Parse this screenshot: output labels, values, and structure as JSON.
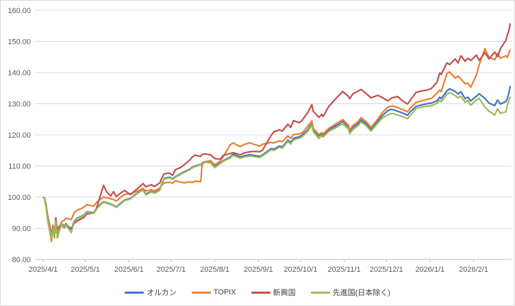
{
  "chart_data": {
    "type": "line",
    "title": "",
    "description": "Indexed performance comparison (start = 100 at 2025/4/1) of four funds/indices",
    "grid": true,
    "colors": {
      "grid": "#d9d9d9",
      "axis": "#bfbfbf",
      "tick_text": "#595959"
    },
    "y_axis": {
      "min": 80,
      "max": 160,
      "step": 10,
      "tick_labels": [
        "80.00",
        "90.00",
        "100.00",
        "110.00",
        "120.00",
        "130.00",
        "140.00",
        "150.00",
        "160.00"
      ]
    },
    "x_axis": {
      "tick_labels": [
        "2025/4/1",
        "2025/5/1",
        "2025/6/1",
        "2025/7/1",
        "2025/8/1",
        "2025/9/1",
        "2025/10/1",
        "2025/11/1",
        "2025/12/1",
        "2026/1/1",
        "2026/2/1"
      ]
    },
    "legend": {
      "position": "bottom",
      "items": [
        "オルカン",
        "TOPIX",
        "新興国",
        "先進国(日本除く)"
      ]
    },
    "dates": [
      "2025/4/1",
      "2025/4/2",
      "2025/4/3",
      "2025/4/4",
      "2025/4/7",
      "2025/4/8",
      "2025/4/9",
      "2025/4/10",
      "2025/4/11",
      "2025/4/14",
      "2025/4/16",
      "2025/4/17",
      "2025/4/21",
      "2025/4/23",
      "2025/4/25",
      "2025/4/28",
      "2025/4/30",
      "2025/5/2",
      "2025/5/7",
      "2025/5/9",
      "2025/5/12",
      "2025/5/14",
      "2025/5/16",
      "2025/5/19",
      "2025/5/21",
      "2025/5/23",
      "2025/5/27",
      "2025/5/29",
      "2025/6/2",
      "2025/6/4",
      "2025/6/9",
      "2025/6/11",
      "2025/6/13",
      "2025/6/17",
      "2025/6/19",
      "2025/6/23",
      "2025/6/24",
      "2025/6/26",
      "2025/6/30",
      "2025/7/2",
      "2025/7/4",
      "2025/7/8",
      "2025/7/10",
      "2025/7/14",
      "2025/7/16",
      "2025/7/18",
      "2025/7/22",
      "2025/7/23",
      "2025/7/25",
      "2025/7/29",
      "2025/8/1",
      "2025/8/5",
      "2025/8/7",
      "2025/8/12",
      "2025/8/14",
      "2025/8/19",
      "2025/8/22",
      "2025/8/26",
      "2025/8/29",
      "2025/9/2",
      "2025/9/4",
      "2025/9/10",
      "2025/9/12",
      "2025/9/16",
      "2025/9/18",
      "2025/9/22",
      "2025/9/24",
      "2025/9/26",
      "2025/9/30",
      "2025/10/2",
      "2025/10/6",
      "2025/10/9",
      "2025/10/10",
      "2025/10/14",
      "2025/10/16",
      "2025/10/17",
      "2025/10/21",
      "2025/10/24",
      "2025/10/28",
      "2025/10/31",
      "2025/11/4",
      "2025/11/5",
      "2025/11/7",
      "2025/11/11",
      "2025/11/13",
      "2025/11/17",
      "2025/11/20",
      "2025/11/25",
      "2025/11/28",
      "2025/12/2",
      "2025/12/5",
      "2025/12/9",
      "2025/12/12",
      "2025/12/16",
      "2025/12/18",
      "2025/12/22",
      "2025/12/26",
      "2025/12/30",
      "2026/1/2",
      "2026/1/6",
      "2026/1/8",
      "2026/1/9",
      "2026/1/13",
      "2026/1/15",
      "2026/1/19",
      "2026/1/21",
      "2026/1/23",
      "2026/1/26",
      "2026/1/28",
      "2026/1/30",
      "2026/2/3",
      "2026/2/5",
      "2026/2/9",
      "2026/2/12",
      "2026/2/16",
      "2026/2/18",
      "2026/2/20",
      "2026/2/24",
      "2026/2/25",
      "2026/2/26",
      "2026/2/27"
    ],
    "series": [
      {
        "name": "オルカン",
        "slug": "all-country-orkan",
        "color": "#4472C4",
        "values": [
          100,
          99.6,
          97.2,
          93.8,
          87.2,
          90.3,
          88.0,
          92.5,
          89.5,
          91.5,
          90.8,
          91.5,
          89.6,
          92.3,
          93.2,
          93.8,
          94.3,
          95.3,
          95.0,
          96.3,
          97.9,
          98.5,
          98.3,
          97.8,
          97.4,
          96.9,
          98.4,
          99.1,
          99.6,
          100.4,
          102.0,
          102.4,
          101.0,
          101.9,
          101.4,
          102.4,
          104.0,
          106.0,
          106.4,
          105.9,
          106.6,
          107.6,
          108.1,
          108.9,
          109.6,
          110.0,
          110.5,
          111.0,
          111.4,
          111.2,
          109.8,
          111.0,
          111.7,
          112.9,
          113.8,
          112.9,
          113.3,
          113.6,
          113.4,
          113.1,
          113.6,
          115.6,
          115.4,
          116.4,
          116.1,
          118.3,
          117.6,
          118.9,
          119.4,
          119.9,
          121.6,
          123.6,
          121.6,
          119.6,
          120.4,
          119.9,
          121.6,
          122.4,
          123.4,
          124.3,
          122.6,
          121.1,
          122.3,
          123.6,
          124.8,
          123.4,
          121.9,
          124.4,
          126.1,
          127.8,
          128.2,
          127.6,
          127.1,
          126.3,
          127.4,
          129.1,
          129.6,
          130.0,
          130.2,
          130.9,
          132.1,
          131.6,
          134.1,
          134.8,
          133.9,
          133.1,
          133.9,
          131.6,
          132.1,
          130.9,
          132.4,
          133.2,
          131.7,
          130.2,
          129.4,
          131.2,
          129.9,
          130.7,
          131.7,
          133.3,
          135.5
        ]
      },
      {
        "name": "TOPIX",
        "slug": "topix",
        "color": "#ED7D31",
        "values": [
          100,
          99.5,
          96.8,
          93.2,
          85.8,
          91.0,
          87.0,
          91.5,
          88.2,
          92.0,
          92.6,
          93.2,
          92.8,
          95.0,
          95.8,
          96.3,
          96.8,
          97.6,
          97.1,
          98.3,
          99.4,
          100.1,
          99.8,
          99.5,
          99.2,
          98.8,
          100.3,
          100.9,
          101.1,
          101.4,
          102.3,
          102.8,
          102.0,
          102.4,
          102.0,
          102.9,
          103.6,
          104.6,
          104.8,
          104.5,
          105.3,
          104.8,
          104.6,
          104.9,
          104.7,
          105.1,
          105.0,
          110.3,
          111.4,
          111.7,
          110.4,
          111.6,
          113.0,
          116.8,
          117.4,
          116.2,
          116.9,
          117.5,
          116.9,
          116.4,
          117.0,
          117.6,
          117.4,
          118.1,
          117.8,
          119.6,
          118.9,
          120.1,
          120.3,
          120.6,
          122.7,
          124.5,
          122.1,
          120.1,
          120.7,
          120.3,
          122.1,
          122.9,
          124.1,
          124.9,
          123.1,
          121.6,
          122.9,
          124.3,
          125.5,
          124.1,
          122.4,
          125.1,
          127.1,
          128.9,
          129.3,
          128.8,
          128.2,
          127.4,
          128.6,
          130.4,
          130.9,
          131.4,
          131.7,
          133.4,
          134.4,
          133.9,
          139.7,
          140.2,
          138.2,
          138.9,
          137.9,
          136.4,
          136.6,
          135.3,
          139.2,
          142.6,
          147.7,
          144.9,
          144.1,
          146.1,
          144.6,
          145.4,
          144.8,
          146.2,
          147.2
        ]
      },
      {
        "name": "新興国",
        "slug": "emerging-markets",
        "color": "#C0504D",
        "values": [
          100,
          99.7,
          97.8,
          94.5,
          88.0,
          90.5,
          87.3,
          93.4,
          90.0,
          91.0,
          90.2,
          90.8,
          90.0,
          91.5,
          92.3,
          93.0,
          93.5,
          94.6,
          94.9,
          96.5,
          101.0,
          103.8,
          101.8,
          100.4,
          101.8,
          100.2,
          101.6,
          102.1,
          100.8,
          101.6,
          103.5,
          104.4,
          103.3,
          104.0,
          103.4,
          104.6,
          105.8,
          107.5,
          107.7,
          107.0,
          108.8,
          109.6,
          110.3,
          111.8,
          112.9,
          113.5,
          113.1,
          113.7,
          113.9,
          113.6,
          112.4,
          112.2,
          113.4,
          114.0,
          114.3,
          113.6,
          114.2,
          114.6,
          114.7,
          114.6,
          115.1,
          119.8,
          121.0,
          121.6,
          121.2,
          123.4,
          122.4,
          124.6,
          123.9,
          124.6,
          127.1,
          129.7,
          127.6,
          125.6,
          126.6,
          125.9,
          129.1,
          130.6,
          132.6,
          133.9,
          132.4,
          131.6,
          133.1,
          134.1,
          134.6,
          133.1,
          131.9,
          132.7,
          132.0,
          130.9,
          131.9,
          132.3,
          131.1,
          129.9,
          131.1,
          133.6,
          134.1,
          134.4,
          134.9,
          136.9,
          139.9,
          139.4,
          143.1,
          142.6,
          144.4,
          143.1,
          145.4,
          143.6,
          144.6,
          143.9,
          145.6,
          143.9,
          146.4,
          144.4,
          146.6,
          145.1,
          147.6,
          150.4,
          152.1,
          153.3,
          155.6
        ]
      },
      {
        "name": "先進国(日本除く)",
        "slug": "developed-ex-japan",
        "color": "#9BBB59",
        "values": [
          100,
          99.5,
          97.0,
          93.5,
          86.8,
          90.0,
          87.5,
          92.3,
          86.9,
          91.2,
          90.5,
          91.2,
          88.6,
          92.0,
          93.0,
          93.6,
          94.1,
          95.1,
          94.8,
          96.1,
          97.7,
          98.3,
          98.1,
          97.6,
          97.2,
          96.7,
          98.2,
          98.9,
          99.4,
          100.2,
          101.8,
          102.2,
          100.7,
          101.7,
          101.2,
          102.2,
          103.8,
          105.8,
          106.2,
          105.7,
          106.4,
          107.4,
          107.9,
          108.7,
          109.4,
          109.8,
          110.3,
          110.8,
          111.2,
          111.0,
          109.5,
          110.8,
          111.5,
          112.6,
          113.4,
          112.5,
          112.9,
          113.2,
          113.0,
          112.7,
          113.3,
          115.2,
          115.0,
          116.0,
          115.7,
          117.9,
          117.1,
          118.4,
          118.9,
          119.3,
          121.1,
          123.1,
          121.1,
          118.8,
          119.7,
          119.3,
          121.1,
          121.8,
          122.8,
          123.5,
          121.9,
          120.4,
          121.6,
          123.0,
          124.2,
          122.8,
          121.2,
          123.8,
          125.4,
          126.4,
          126.9,
          126.4,
          125.9,
          125.2,
          126.2,
          128.4,
          128.9,
          129.2,
          129.4,
          130.1,
          131.1,
          130.6,
          133.1,
          133.6,
          132.6,
          131.9,
          132.4,
          130.4,
          131.1,
          129.5,
          131.2,
          131.7,
          128.9,
          127.6,
          126.4,
          128.4,
          126.9,
          127.4,
          129.4,
          130.9,
          132.1
        ]
      }
    ]
  }
}
